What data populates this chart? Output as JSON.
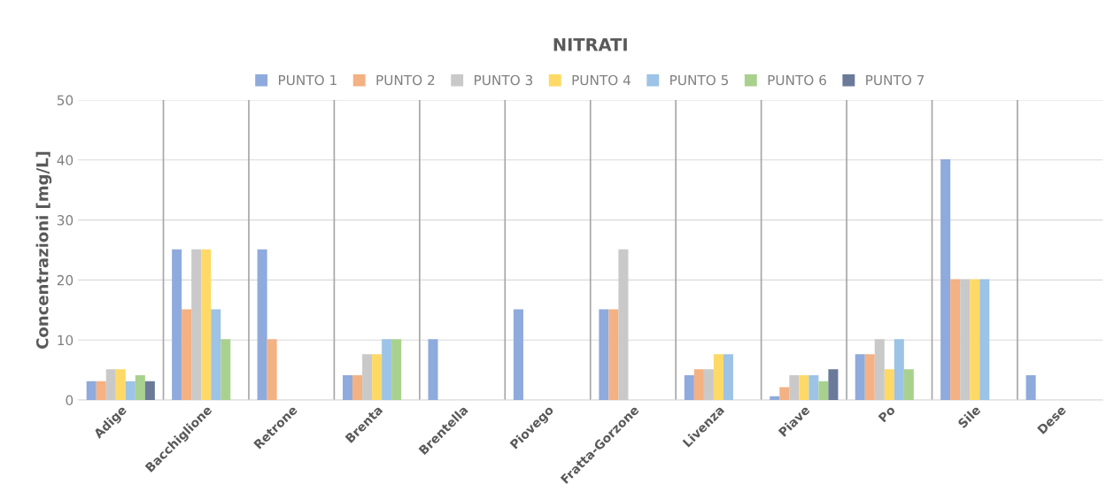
{
  "chart_data": {
    "type": "bar",
    "title": "NITRATI",
    "ylabel": "Concentrazioni [mg/L]",
    "categories": [
      "Adige",
      "Bacchiglione",
      "Retrone",
      "Brenta",
      "Brentella",
      "Piovego",
      "Fratta-Gorzone",
      "Livenza",
      "Piave",
      "Po",
      "Sile",
      "Dese"
    ],
    "series": [
      {
        "name": "PUNTO 1",
        "color": "#8faadc",
        "values": [
          3,
          25,
          25,
          4,
          10,
          15,
          15,
          4,
          0.5,
          7.5,
          40,
          4
        ]
      },
      {
        "name": "PUNTO 2",
        "color": "#f4b183",
        "values": [
          3,
          15,
          10,
          4,
          null,
          null,
          15,
          5,
          2,
          7.5,
          20,
          null
        ]
      },
      {
        "name": "PUNTO 3",
        "color": "#c9c9c9",
        "values": [
          5,
          25,
          null,
          7.5,
          null,
          null,
          25,
          5,
          4,
          10,
          20,
          null
        ]
      },
      {
        "name": "PUNTO 4",
        "color": "#ffd966",
        "values": [
          5,
          25,
          null,
          7.5,
          null,
          null,
          null,
          7.5,
          4,
          5,
          20,
          null
        ]
      },
      {
        "name": "PUNTO 5",
        "color": "#9dc3e6",
        "values": [
          3,
          15,
          null,
          10,
          null,
          null,
          null,
          7.5,
          4,
          10,
          20,
          null
        ]
      },
      {
        "name": "PUNTO 6",
        "color": "#a9d18e",
        "values": [
          4,
          10,
          null,
          10,
          null,
          null,
          null,
          null,
          3,
          5,
          null,
          null
        ]
      },
      {
        "name": "PUNTO 7",
        "color": "#6b7a99",
        "values": [
          3,
          null,
          null,
          null,
          null,
          null,
          null,
          null,
          5,
          null,
          null,
          null
        ]
      }
    ],
    "ylim": [
      0,
      50
    ],
    "yticks": [
      0,
      10,
      20,
      30,
      40,
      50
    ],
    "grid": true,
    "legend": "top"
  }
}
